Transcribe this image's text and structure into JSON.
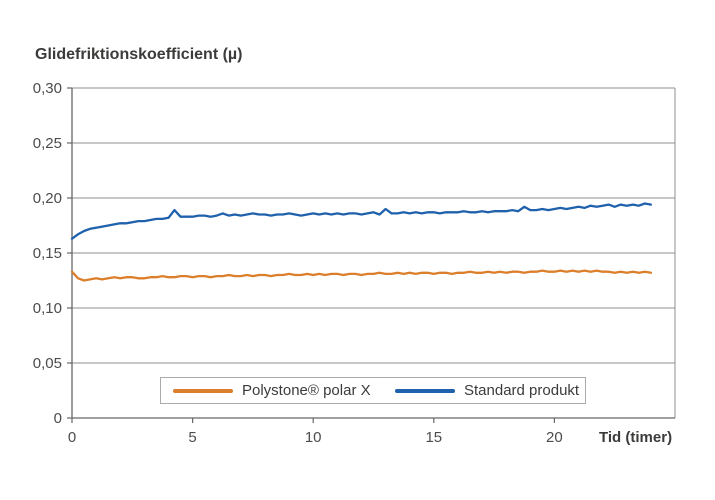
{
  "chart_data": {
    "type": "line",
    "title": "Glidefriktionskoefficient (µ)",
    "xlabel": "Tid (timer)",
    "ylabel": "Glidefriktionskoefficient (µ)",
    "xlim": [
      0,
      25
    ],
    "ylim": [
      0,
      0.3
    ],
    "grid": "horizontal",
    "legend_position": "bottom-center-inside",
    "colors": {
      "grid": "#8f8f8f",
      "axis": "#676767",
      "tick_text": "#4c4c4c"
    },
    "x_ticks": [
      {
        "v": 0,
        "label": "0"
      },
      {
        "v": 5,
        "label": "5"
      },
      {
        "v": 10,
        "label": "10"
      },
      {
        "v": 15,
        "label": "15"
      },
      {
        "v": 20,
        "label": "20"
      }
    ],
    "y_ticks": [
      {
        "v": 0,
        "label": "0"
      },
      {
        "v": 0.05,
        "label": "0,05"
      },
      {
        "v": 0.1,
        "label": "0,10"
      },
      {
        "v": 0.15,
        "label": "0,15"
      },
      {
        "v": 0.2,
        "label": "0,20"
      },
      {
        "v": 0.25,
        "label": "0,25"
      },
      {
        "v": 0.3,
        "label": "0,30"
      }
    ],
    "series": [
      {
        "name": "Polystone® polar X",
        "color": "#dc7f2c",
        "t0": 0,
        "dt": 0.25,
        "values": [
          0.133,
          0.127,
          0.125,
          0.126,
          0.127,
          0.126,
          0.127,
          0.128,
          0.127,
          0.128,
          0.128,
          0.127,
          0.127,
          0.128,
          0.128,
          0.129,
          0.128,
          0.128,
          0.129,
          0.129,
          0.128,
          0.129,
          0.129,
          0.128,
          0.129,
          0.129,
          0.13,
          0.129,
          0.129,
          0.13,
          0.129,
          0.13,
          0.13,
          0.129,
          0.13,
          0.13,
          0.131,
          0.13,
          0.13,
          0.131,
          0.13,
          0.131,
          0.13,
          0.131,
          0.131,
          0.13,
          0.131,
          0.131,
          0.13,
          0.131,
          0.131,
          0.132,
          0.131,
          0.131,
          0.132,
          0.131,
          0.132,
          0.131,
          0.132,
          0.132,
          0.131,
          0.132,
          0.132,
          0.131,
          0.132,
          0.132,
          0.133,
          0.132,
          0.132,
          0.133,
          0.132,
          0.133,
          0.132,
          0.133,
          0.133,
          0.132,
          0.133,
          0.133,
          0.134,
          0.133,
          0.133,
          0.134,
          0.133,
          0.134,
          0.133,
          0.134,
          0.133,
          0.134,
          0.133,
          0.133,
          0.132,
          0.133,
          0.132,
          0.133,
          0.132,
          0.133,
          0.132
        ]
      },
      {
        "name": "Standard produkt",
        "color": "#1f61ac",
        "t0": 0,
        "dt": 0.25,
        "values": [
          0.163,
          0.167,
          0.17,
          0.172,
          0.173,
          0.174,
          0.175,
          0.176,
          0.177,
          0.177,
          0.178,
          0.179,
          0.179,
          0.18,
          0.181,
          0.181,
          0.182,
          0.189,
          0.183,
          0.183,
          0.183,
          0.184,
          0.184,
          0.183,
          0.184,
          0.186,
          0.184,
          0.185,
          0.184,
          0.185,
          0.186,
          0.185,
          0.185,
          0.184,
          0.185,
          0.185,
          0.186,
          0.185,
          0.184,
          0.185,
          0.186,
          0.185,
          0.186,
          0.185,
          0.186,
          0.185,
          0.186,
          0.186,
          0.185,
          0.186,
          0.187,
          0.185,
          0.19,
          0.186,
          0.186,
          0.187,
          0.186,
          0.187,
          0.186,
          0.187,
          0.187,
          0.186,
          0.187,
          0.187,
          0.187,
          0.188,
          0.187,
          0.187,
          0.188,
          0.187,
          0.188,
          0.188,
          0.188,
          0.189,
          0.188,
          0.192,
          0.189,
          0.189,
          0.19,
          0.189,
          0.19,
          0.191,
          0.19,
          0.191,
          0.192,
          0.191,
          0.193,
          0.192,
          0.193,
          0.194,
          0.192,
          0.194,
          0.193,
          0.194,
          0.193,
          0.195,
          0.194
        ]
      }
    ]
  }
}
